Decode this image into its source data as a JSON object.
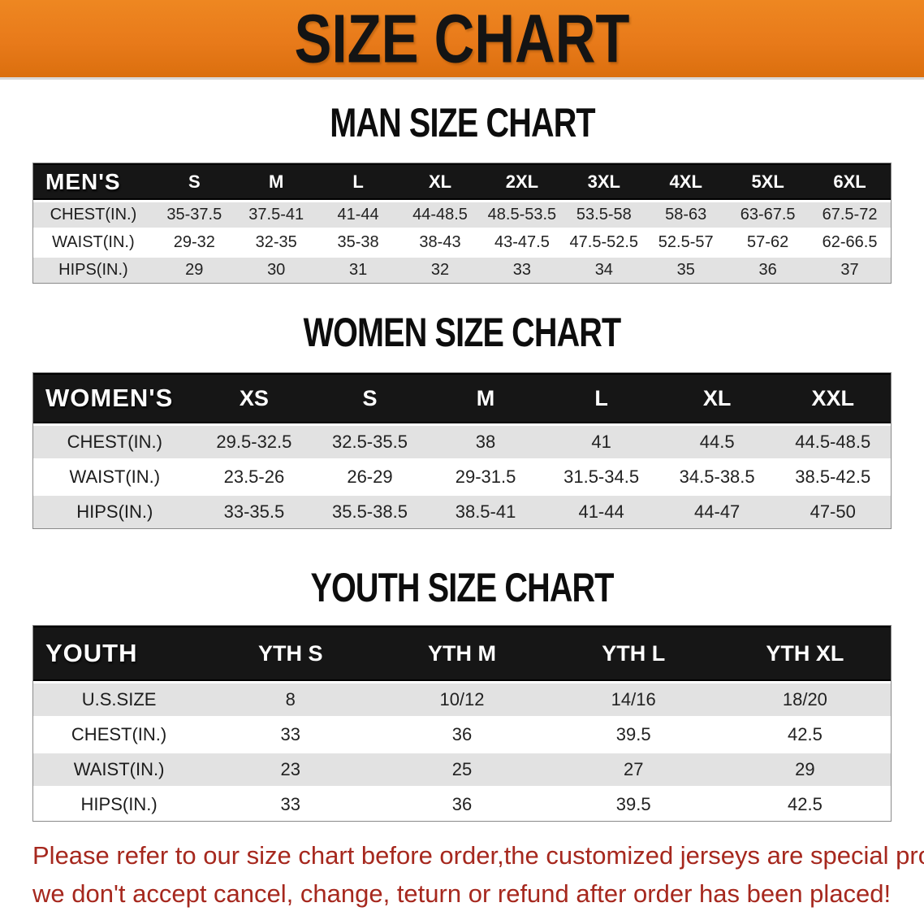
{
  "banner": {
    "title": "SIZE CHART",
    "bg_color": "#e87a1a",
    "text_color": "#141414"
  },
  "sections": [
    {
      "heading": "MAN SIZE CHART",
      "header_label": "MEN'S",
      "columns": [
        "S",
        "M",
        "L",
        "XL",
        "2XL",
        "3XL",
        "4XL",
        "5XL",
        "6XL"
      ],
      "rows": [
        {
          "label": "CHEST(IN.)",
          "values": [
            "35-37.5",
            "37.5-41",
            "41-44",
            "44-48.5",
            "48.5-53.5",
            "53.5-58",
            "58-63",
            "63-67.5",
            "67.5-72"
          ]
        },
        {
          "label": "WAIST(IN.)",
          "values": [
            "29-32",
            "32-35",
            "35-38",
            "38-43",
            "43-47.5",
            "47.5-52.5",
            "52.5-57",
            "57-62",
            "62-66.5"
          ]
        },
        {
          "label": "HIPS(IN.)",
          "values": [
            "29",
            "30",
            "31",
            "32",
            "33",
            "34",
            "35",
            "36",
            "37"
          ]
        }
      ]
    },
    {
      "heading": "WOMEN SIZE CHART",
      "header_label": "WOMEN'S",
      "columns": [
        "XS",
        "S",
        "M",
        "L",
        "XL",
        "XXL"
      ],
      "rows": [
        {
          "label": "CHEST(IN.)",
          "values": [
            "29.5-32.5",
            "32.5-35.5",
            "38",
            "41",
            "44.5",
            "44.5-48.5"
          ]
        },
        {
          "label": "WAIST(IN.)",
          "values": [
            "23.5-26",
            "26-29",
            "29-31.5",
            "31.5-34.5",
            "34.5-38.5",
            "38.5-42.5"
          ]
        },
        {
          "label": "HIPS(IN.)",
          "values": [
            "33-35.5",
            "35.5-38.5",
            "38.5-41",
            "41-44",
            "44-47",
            "47-50"
          ]
        }
      ]
    },
    {
      "heading": "YOUTH SIZE CHART",
      "header_label": "YOUTH",
      "columns": [
        "YTH S",
        "YTH M",
        "YTH L",
        "YTH XL"
      ],
      "rows": [
        {
          "label": "U.S.SIZE",
          "values": [
            "8",
            "10/12",
            "14/16",
            "18/20"
          ]
        },
        {
          "label": "CHEST(IN.)",
          "values": [
            "33",
            "36",
            "39.5",
            "42.5"
          ]
        },
        {
          "label": "WAIST(IN.)",
          "values": [
            "23",
            "25",
            "27",
            "29"
          ]
        },
        {
          "label": "HIPS(IN.)",
          "values": [
            "33",
            "36",
            "39.5",
            "42.5"
          ]
        }
      ]
    }
  ],
  "disclaimer": {
    "line1": "Please refer to our size chart before order,the customized jerseys are special products,",
    "line2": "we don't accept cancel, change, teturn or refund after order has been placed!",
    "color": "#a6281e"
  },
  "colors": {
    "banner_orange": "#e87a1a",
    "table_header_black": "#161616",
    "row_stripe_gray": "#e2e2e2",
    "body_text": "#222222",
    "disclaimer_red": "#a6281e"
  }
}
